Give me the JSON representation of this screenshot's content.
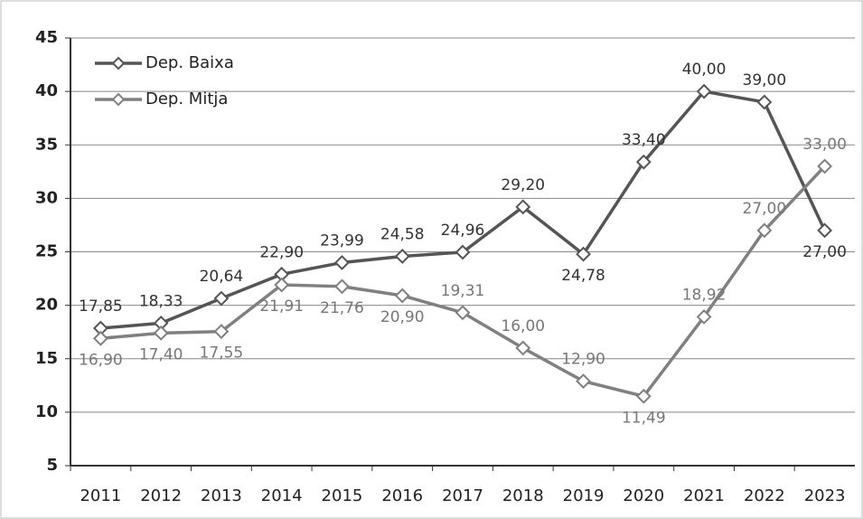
{
  "chart_data": {
    "type": "line",
    "categories": [
      "2011",
      "2012",
      "2013",
      "2014",
      "2015",
      "2016",
      "2017",
      "2018",
      "2019",
      "2020",
      "2021",
      "2022",
      "2023"
    ],
    "series": [
      {
        "name": "Dep. Baixa",
        "color": "#555555",
        "values": [
          17.85,
          18.33,
          20.64,
          22.9,
          23.99,
          24.58,
          24.96,
          29.2,
          24.78,
          33.4,
          40.0,
          39.0,
          27.0
        ],
        "value_labels": [
          "17,85",
          "18,33",
          "20,64",
          "22,90",
          "23,99",
          "24,58",
          "24,96",
          "29,20",
          "24,78",
          "33,40",
          "40,00",
          "39,00",
          "27,00"
        ]
      },
      {
        "name": "Dep. Mitja",
        "color": "#808080",
        "values": [
          16.9,
          17.4,
          17.55,
          21.91,
          21.76,
          20.9,
          19.31,
          16.0,
          12.9,
          11.49,
          18.92,
          27.0,
          33.0
        ],
        "value_labels": [
          "16,90",
          "17,40",
          "17,55",
          "21,91",
          "21,76",
          "20,90",
          "19,31",
          "16,00",
          "12,90",
          "11,49",
          "18,92",
          "27,00",
          "33,00"
        ]
      }
    ],
    "ylim": [
      5,
      45
    ],
    "yticks": [
      5,
      10,
      15,
      20,
      25,
      30,
      35,
      40,
      45
    ],
    "grid": true,
    "legend": "upper left"
  }
}
